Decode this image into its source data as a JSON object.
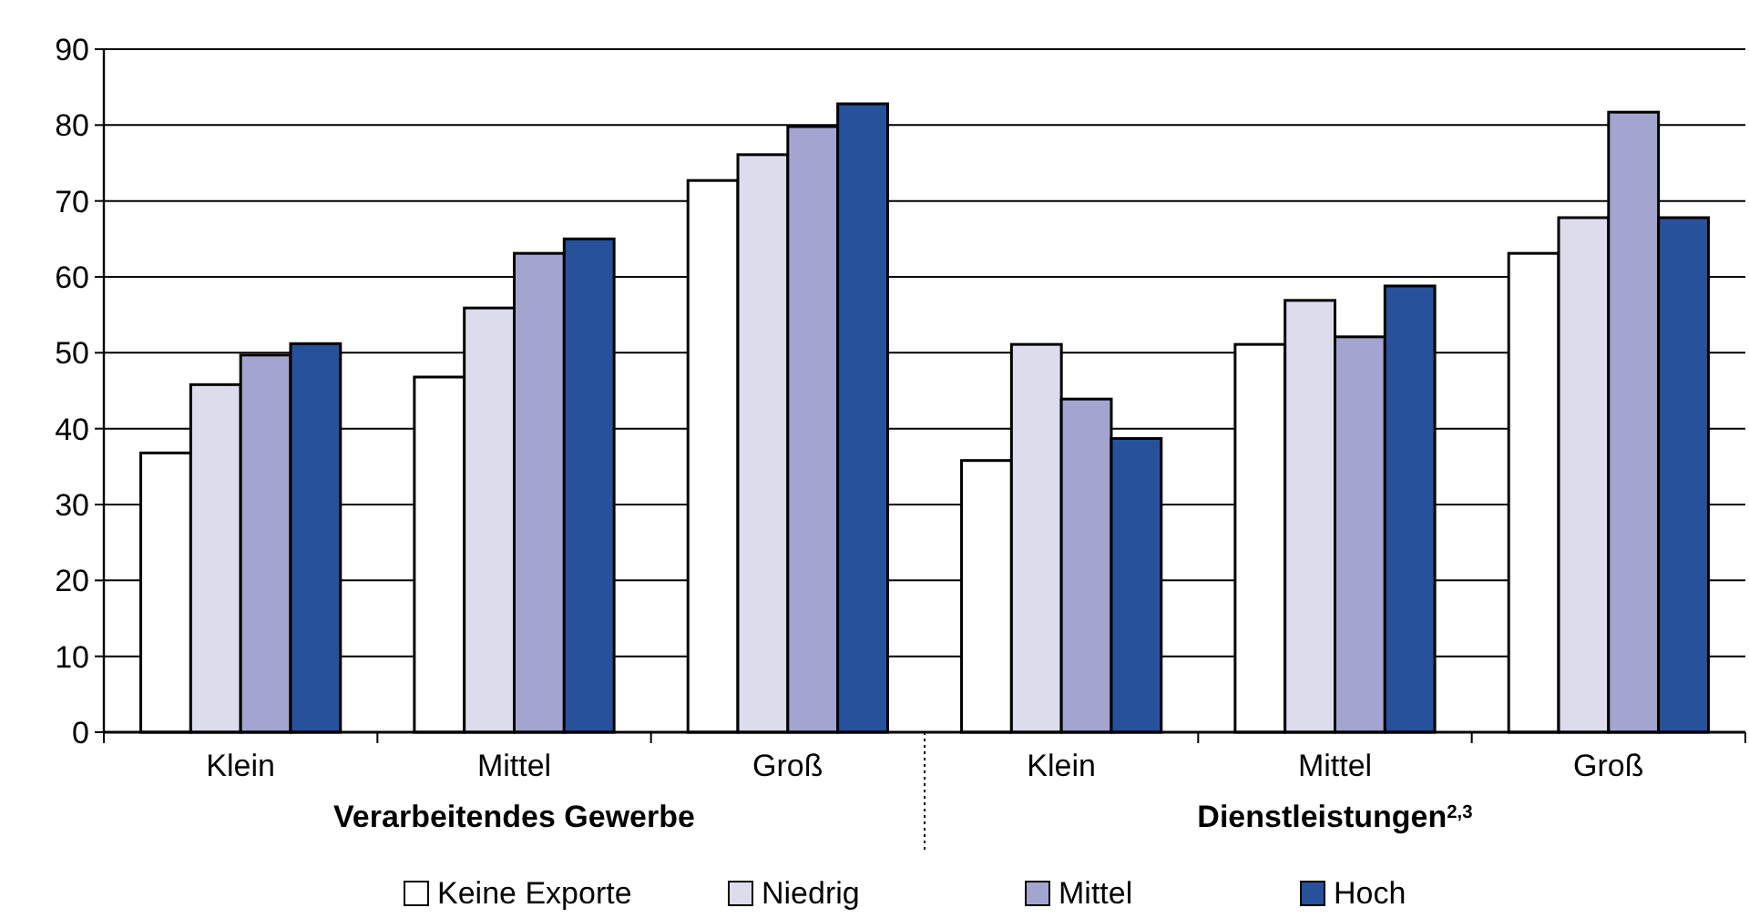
{
  "chart_data": {
    "type": "bar",
    "categories": [
      "Klein",
      "Mittel",
      "Groß",
      "Klein",
      "Mittel",
      "Groß"
    ],
    "series": [
      {
        "name": "Keine Exporte",
        "color": "#ffffff",
        "values": [
          36.8,
          46.8,
          72.7,
          35.8,
          51.1,
          63.1
        ]
      },
      {
        "name": "Niedrig",
        "color": "#dcdcec",
        "values": [
          45.8,
          55.9,
          76.1,
          51.1,
          56.9,
          67.8
        ]
      },
      {
        "name": "Mittel",
        "color": "#a3a5d0",
        "values": [
          49.7,
          63.1,
          79.8,
          43.9,
          52.1,
          81.7
        ]
      },
      {
        "name": "Hoch",
        "color": "#27519b",
        "values": [
          51.2,
          65.0,
          82.8,
          38.7,
          58.8,
          67.8
        ]
      }
    ],
    "annotations": [
      "Verarbeitendes Gewerbe",
      "Dienstleistungen$^{2,3}$"
    ],
    "ylim": [
      0,
      90
    ],
    "yticks": [
      0,
      10,
      20,
      30,
      40,
      50,
      60,
      70,
      80,
      90
    ],
    "grid": "y",
    "legend": "bottom"
  }
}
